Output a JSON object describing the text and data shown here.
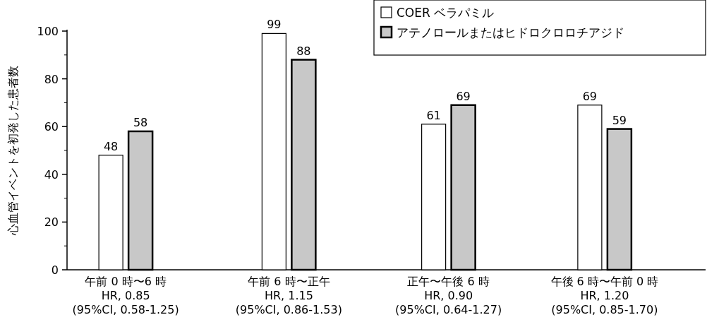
{
  "chart_data": {
    "type": "bar",
    "ylabel": "心血管イベントを初発した患者数",
    "categories": [
      "午前 0 時〜6 時\nHR, 0.85\n(95%CI, 0.58-1.25)",
      "午前 6 時〜正午\nHR, 1.15\n(95%CI, 0.86-1.53)",
      "正午〜午後 6 時\nHR, 0.90\n(95%CI, 0.64-1.27)",
      "午後 6 時〜午前 0 時\nHR, 1.20\n(95%CI, 0.85-1.70)"
    ],
    "series": [
      {
        "name": "COER ベラパミル",
        "color": "#ffffff",
        "values": [
          48,
          99,
          61,
          69
        ]
      },
      {
        "name": "アテノロールまたはヒドロクロロチアジド",
        "color": "#c8c8c8",
        "values": [
          58,
          88,
          69,
          59
        ]
      }
    ],
    "ylim": [
      0,
      100
    ],
    "yticks": [
      0,
      20,
      40,
      60,
      80,
      100
    ],
    "data_labels": true,
    "legend": "top right",
    "grid": false
  }
}
